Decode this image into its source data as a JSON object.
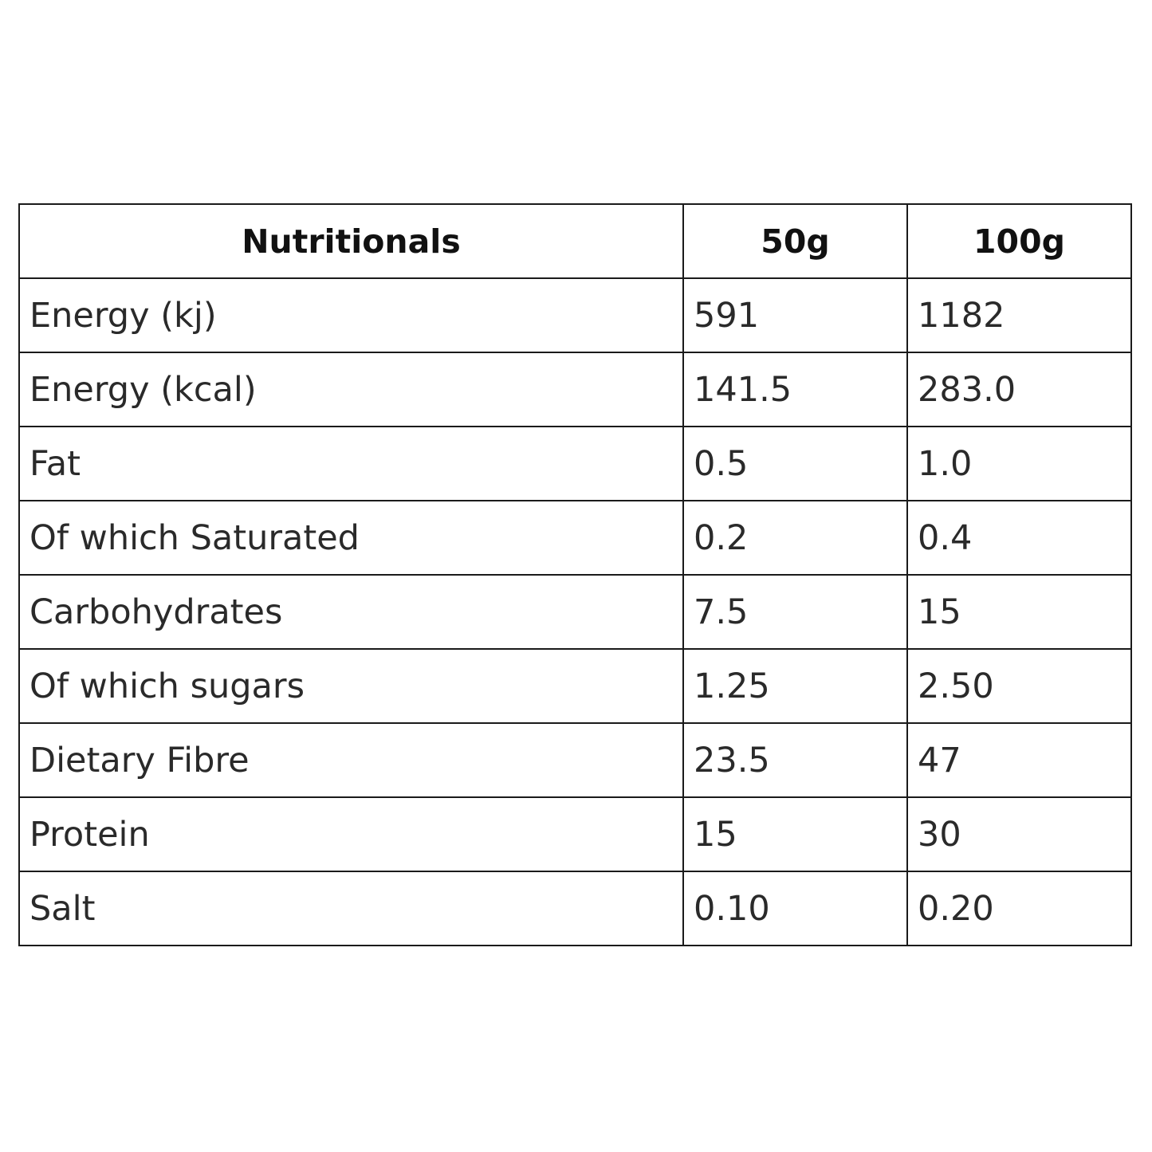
{
  "table": {
    "headers": [
      "Nutritionals",
      "50g",
      "100g"
    ],
    "rows": [
      [
        "Energy (kj)",
        "591",
        "1182"
      ],
      [
        "Energy (kcal)",
        "141.5",
        "283.0"
      ],
      [
        "Fat",
        "0.5",
        "1.0"
      ],
      [
        "Of which Saturated",
        "0.2",
        "0.4"
      ],
      [
        "Carbohydrates",
        "7.5",
        "15"
      ],
      [
        "Of which sugars",
        "1.25",
        "2.50"
      ],
      [
        "Dietary Fibre",
        "23.5",
        "47"
      ],
      [
        "Protein",
        "15",
        "30"
      ],
      [
        "Salt",
        "0.10",
        "0.20"
      ]
    ]
  },
  "colors": {
    "border": "#1a1a1a",
    "text": "#2a2a2a",
    "background": "#ffffff"
  }
}
